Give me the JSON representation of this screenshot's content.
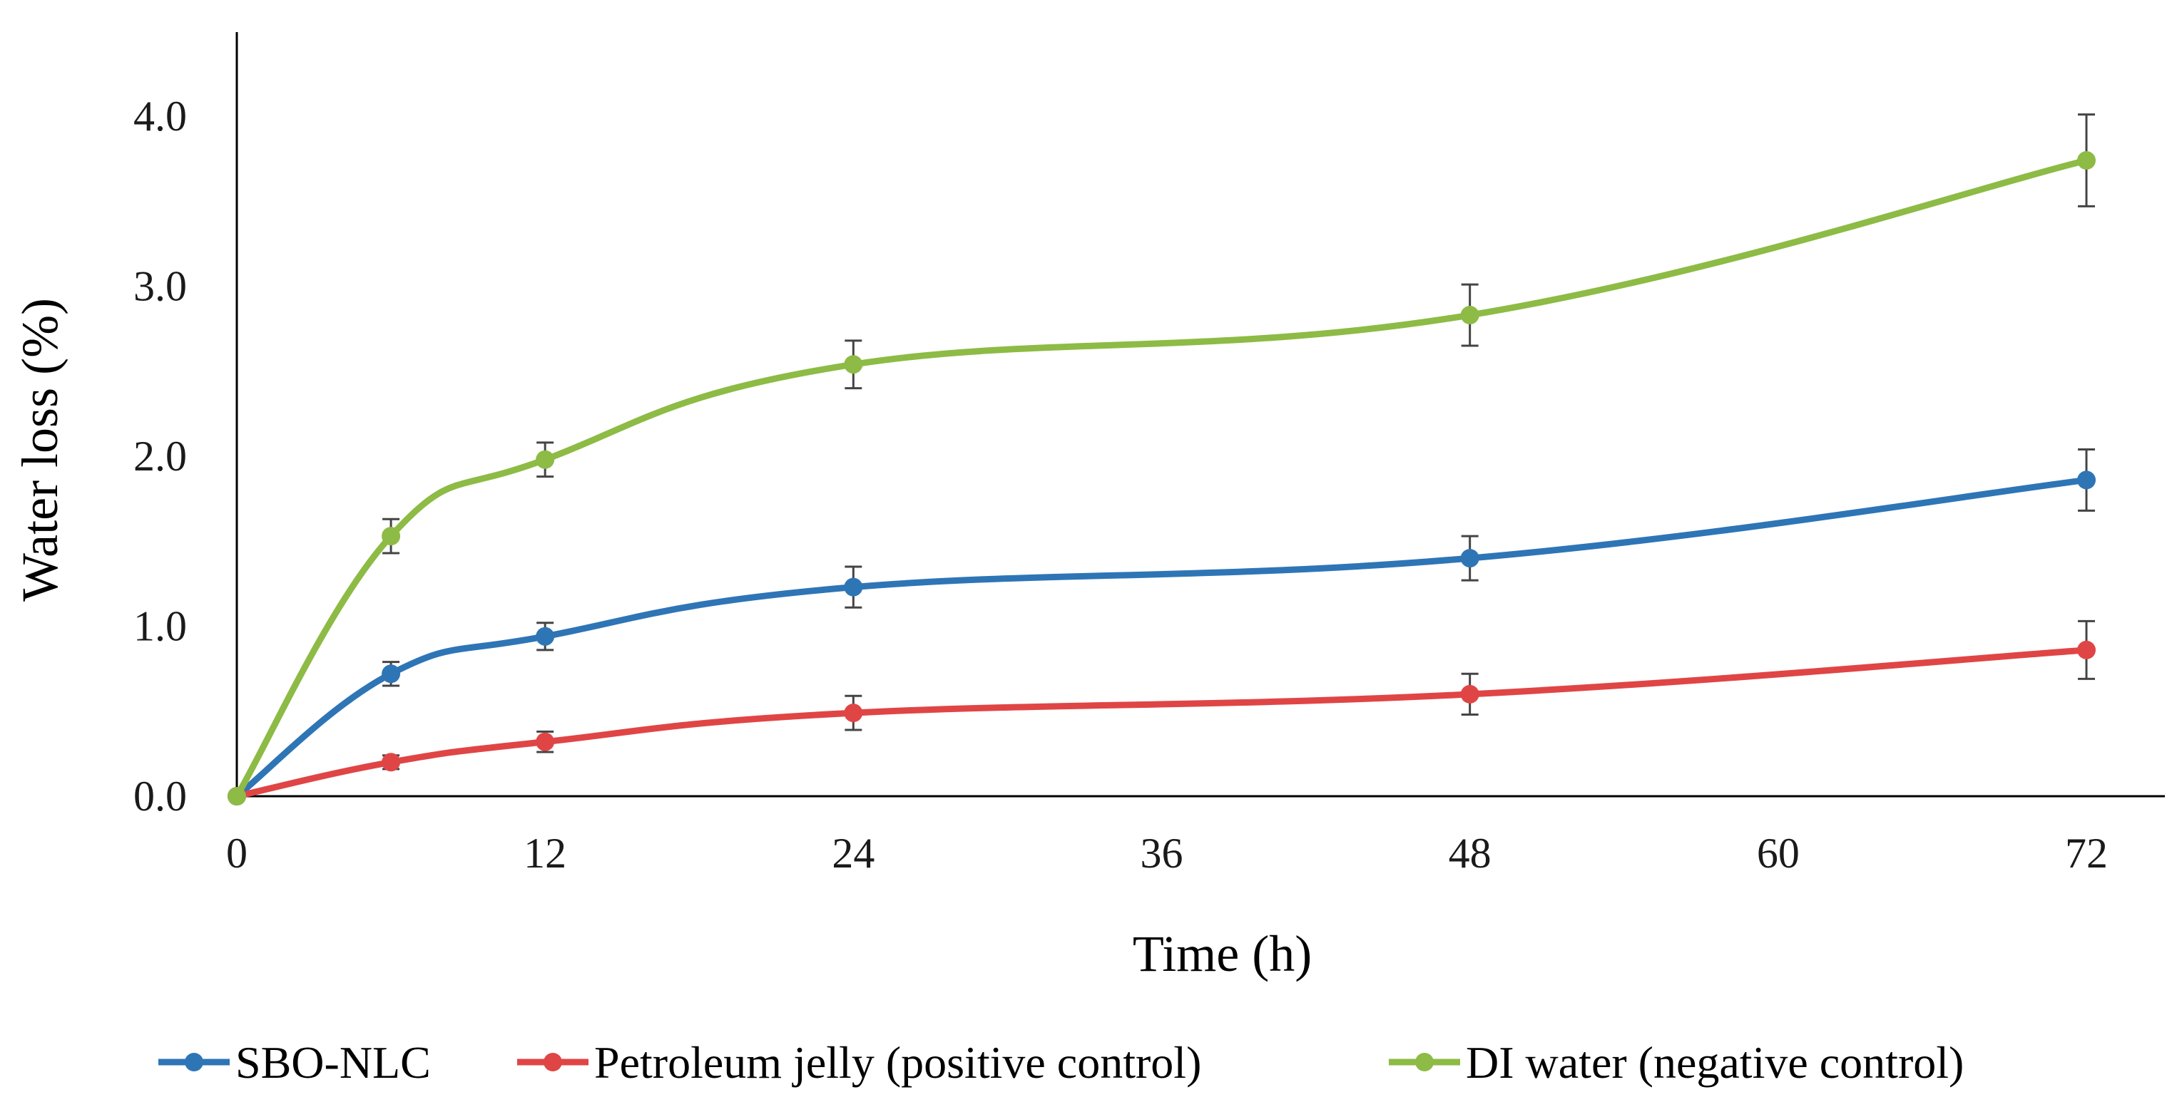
{
  "chart_data": {
    "type": "line",
    "title": "",
    "xlabel": "Time (h)",
    "ylabel": "Water loss (%)",
    "xlim": [
      0,
      72
    ],
    "ylim": [
      0,
      4.5
    ],
    "x_ticks": [
      0,
      12,
      24,
      36,
      48,
      60,
      72
    ],
    "x_tick_labels": [
      "0",
      "12",
      "24",
      "36",
      "48",
      "60",
      "72"
    ],
    "y_ticks": [
      0,
      1,
      2,
      3,
      4
    ],
    "y_tick_labels": [
      "0.0",
      "1.0",
      "2.0",
      "3.0",
      "4.0"
    ],
    "grid": false,
    "legend_position": "bottom",
    "x": [
      0,
      6,
      12,
      24,
      48,
      72
    ],
    "series": [
      {
        "name": "SBO-NLC",
        "color": "#2E75B6",
        "values": [
          0,
          0.72,
          0.94,
          1.23,
          1.4,
          1.86
        ],
        "errors": [
          0,
          0.07,
          0.08,
          0.12,
          0.13,
          0.18
        ]
      },
      {
        "name": "Petroleum jelly (positive control)",
        "color": "#E04545",
        "values": [
          0,
          0.2,
          0.32,
          0.49,
          0.6,
          0.86
        ],
        "errors": [
          0,
          0.04,
          0.06,
          0.1,
          0.12,
          0.17
        ]
      },
      {
        "name": "DI water (negative control)",
        "color": "#8DBB45",
        "values": [
          0,
          1.53,
          1.98,
          2.54,
          2.83,
          3.74
        ],
        "errors": [
          0,
          0.1,
          0.1,
          0.14,
          0.18,
          0.27
        ]
      }
    ]
  }
}
